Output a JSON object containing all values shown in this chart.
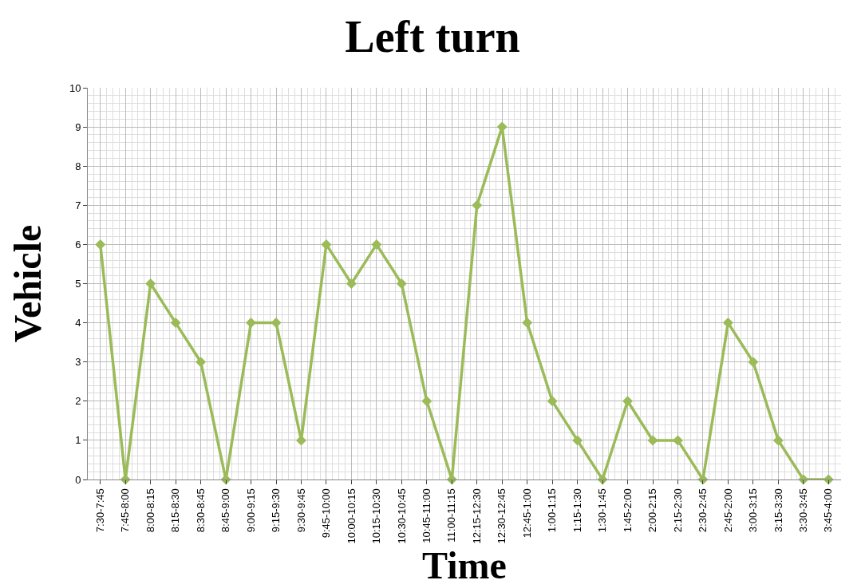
{
  "chart_data": {
    "type": "line",
    "title": "Left turn",
    "xlabel": "Time",
    "ylabel": "Vehicle",
    "categories": [
      "7:30-7:45",
      "7:45-8:00",
      "8:00-8:15",
      "8:15-8:30",
      "8:30-8:45",
      "8:45-9:00",
      "9:00-9:15",
      "9:15-9:30",
      "9:30-9:45",
      "9:45-10:00",
      "10:00-10:15",
      "10:15-10:30",
      "10:30-10:45",
      "10:45-11:00",
      "11:00-11:15",
      "12:15-12:30",
      "12:30-12:45",
      "12:45-1:00",
      "1:00-1:15",
      "1:15-1:30",
      "1:30-1:45",
      "1:45-2:00",
      "2:00-2:15",
      "2:15-2:30",
      "2:30-2:45",
      "2:45-2:00",
      "3:00-3:15",
      "3:15-3:30",
      "3:30-3:45",
      "3:45-4:00"
    ],
    "series": [
      {
        "color": "#9bbb59",
        "values": [
          6,
          0,
          5,
          4,
          3,
          0,
          4,
          4,
          1,
          6,
          5,
          6,
          5,
          2,
          0,
          7,
          9,
          4,
          2,
          1,
          0,
          2,
          1,
          1,
          0,
          4,
          3,
          1,
          0,
          0
        ]
      }
    ],
    "ylim": [
      0,
      10
    ],
    "yticks": [
      0,
      1,
      2,
      3,
      4,
      5,
      6,
      7,
      8,
      9,
      10
    ],
    "grid": true,
    "marker": "diamond",
    "line_style": "solid",
    "legend": false
  }
}
